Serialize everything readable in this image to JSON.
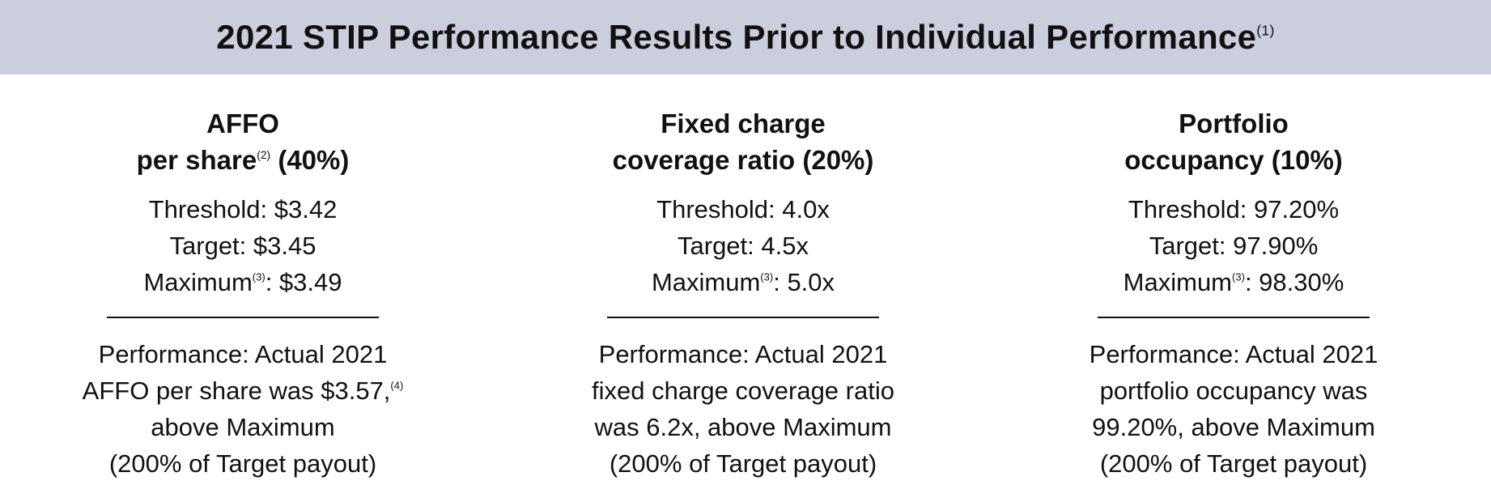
{
  "header": {
    "title": "2021 STIP Performance Results Prior to Individual Performance",
    "title_note": "(1)"
  },
  "columns": [
    {
      "heading": [
        [
          "AFFO"
        ],
        [
          "per share",
          {
            "sup": "(2)"
          },
          " (40%)"
        ]
      ],
      "targets": [
        [
          "Threshold: $3.42"
        ],
        [
          "Target: $3.45"
        ],
        [
          "Maximum",
          {
            "sup": "(3)"
          },
          ": $3.49"
        ]
      ],
      "performance": [
        [
          "Performance: Actual 2021"
        ],
        [
          "AFFO per share was $3.57,",
          {
            "sup": "(4)"
          }
        ],
        [
          "above Maximum"
        ],
        [
          "(200% of Target payout)"
        ]
      ]
    },
    {
      "heading": [
        [
          "Fixed charge"
        ],
        [
          "coverage ratio (20%)"
        ]
      ],
      "targets": [
        [
          "Threshold: 4.0x"
        ],
        [
          "Target: 4.5x"
        ],
        [
          "Maximum",
          {
            "sup": "(3)"
          },
          ": 5.0x"
        ]
      ],
      "performance": [
        [
          "Performance: Actual 2021"
        ],
        [
          "fixed charge coverage ratio"
        ],
        [
          "was 6.2x, above Maximum"
        ],
        [
          "(200% of Target payout)"
        ]
      ]
    },
    {
      "heading": [
        [
          "Portfolio"
        ],
        [
          "occupancy (10%)"
        ]
      ],
      "targets": [
        [
          "Threshold: 97.20%"
        ],
        [
          "Target: 97.90%"
        ],
        [
          "Maximum",
          {
            "sup": "(3)"
          },
          ": 98.30%"
        ]
      ],
      "performance": [
        [
          "Performance: Actual 2021"
        ],
        [
          "portfolio occupancy was"
        ],
        [
          "99.20%, above Maximum"
        ],
        [
          "(200% of Target payout)"
        ]
      ]
    }
  ]
}
